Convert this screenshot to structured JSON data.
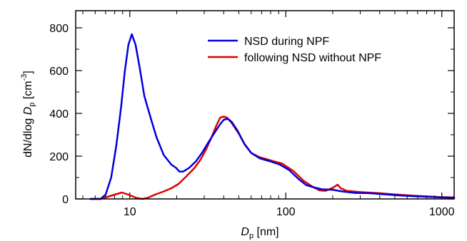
{
  "chart_data": {
    "type": "line",
    "xscale": "log",
    "xlim": [
      4.5,
      1200
    ],
    "ylim": [
      0,
      880
    ],
    "grid": false,
    "legend_position": "top-right",
    "xlabel": {
      "main": "D",
      "sub": "p",
      "unit": " [nm]"
    },
    "ylabel": {
      "pre": "dN/dlog ",
      "italic": "D",
      "sub": "p",
      "unit_open": " [cm",
      "sup": "-3",
      "unit_close": "]"
    },
    "x_ticks": [
      {
        "value": 10,
        "label": "10"
      },
      {
        "value": 100,
        "label": "100"
      },
      {
        "value": 1000,
        "label": "1000"
      }
    ],
    "y_ticks": [
      {
        "value": 0,
        "label": "0"
      },
      {
        "value": 200,
        "label": "200"
      },
      {
        "value": 400,
        "label": "400"
      },
      {
        "value": 600,
        "label": "600"
      },
      {
        "value": 800,
        "label": "800"
      }
    ],
    "series": [
      {
        "name": "NSD during NPF",
        "color": "#0000dd",
        "points": [
          [
            5.6,
            0
          ],
          [
            6.5,
            0
          ],
          [
            7,
            20
          ],
          [
            7.6,
            100
          ],
          [
            8.2,
            250
          ],
          [
            8.8,
            430
          ],
          [
            9.3,
            600
          ],
          [
            9.8,
            720
          ],
          [
            10.3,
            770
          ],
          [
            10.9,
            720
          ],
          [
            11.6,
            610
          ],
          [
            12.4,
            480
          ],
          [
            13.6,
            380
          ],
          [
            14.8,
            290
          ],
          [
            16.5,
            205
          ],
          [
            18.5,
            160
          ],
          [
            19.8,
            145
          ],
          [
            20.8,
            128
          ],
          [
            22,
            128
          ],
          [
            24,
            145
          ],
          [
            26.5,
            175
          ],
          [
            29,
            215
          ],
          [
            31.5,
            258
          ],
          [
            35,
            310
          ],
          [
            38,
            350
          ],
          [
            40,
            370
          ],
          [
            42.5,
            375
          ],
          [
            45,
            360
          ],
          [
            49,
            320
          ],
          [
            54,
            260
          ],
          [
            60,
            215
          ],
          [
            68,
            190
          ],
          [
            80,
            175
          ],
          [
            92,
            160
          ],
          [
            105,
            135
          ],
          [
            120,
            95
          ],
          [
            135,
            65
          ],
          [
            150,
            55
          ],
          [
            170,
            45
          ],
          [
            200,
            43
          ],
          [
            230,
            35
          ],
          [
            280,
            28
          ],
          [
            340,
            27
          ],
          [
            420,
            22
          ],
          [
            520,
            17
          ],
          [
            650,
            13
          ],
          [
            800,
            10
          ],
          [
            1000,
            7
          ],
          [
            1200,
            5
          ]
        ]
      },
      {
        "name": "following NSD without NPF",
        "color": "#dd0000",
        "points": [
          [
            5.6,
            0
          ],
          [
            6.5,
            0
          ],
          [
            7.2,
            10
          ],
          [
            8,
            20
          ],
          [
            8.9,
            30
          ],
          [
            9.8,
            20
          ],
          [
            11,
            5
          ],
          [
            12,
            0
          ],
          [
            13,
            5
          ],
          [
            14.5,
            20
          ],
          [
            16.5,
            35
          ],
          [
            18.5,
            50
          ],
          [
            20.5,
            70
          ],
          [
            23,
            105
          ],
          [
            26,
            145
          ],
          [
            28.5,
            185
          ],
          [
            31,
            235
          ],
          [
            33.5,
            290
          ],
          [
            36,
            345
          ],
          [
            38,
            380
          ],
          [
            40,
            385
          ],
          [
            42,
            380
          ],
          [
            45,
            355
          ],
          [
            50,
            305
          ],
          [
            55,
            250
          ],
          [
            60,
            215
          ],
          [
            68,
            195
          ],
          [
            80,
            180
          ],
          [
            95,
            165
          ],
          [
            112,
            130
          ],
          [
            130,
            85
          ],
          [
            150,
            55
          ],
          [
            165,
            40
          ],
          [
            180,
            38
          ],
          [
            200,
            52
          ],
          [
            215,
            67
          ],
          [
            225,
            50
          ],
          [
            245,
            38
          ],
          [
            300,
            32
          ],
          [
            380,
            28
          ],
          [
            480,
            22
          ],
          [
            600,
            17
          ],
          [
            750,
            13
          ],
          [
            950,
            9
          ],
          [
            1200,
            7
          ]
        ]
      }
    ]
  }
}
